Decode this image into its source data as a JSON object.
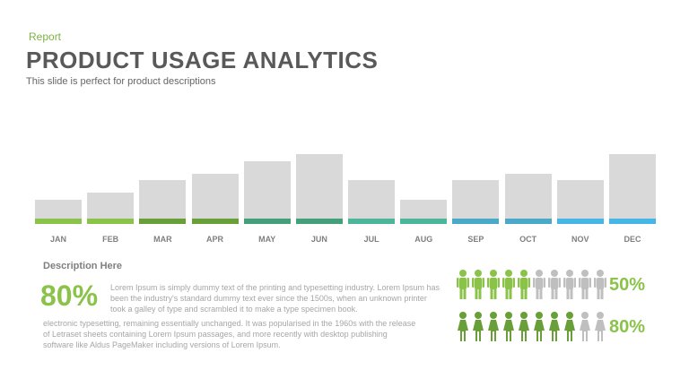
{
  "header": {
    "tag": "Report",
    "title": "PRODUCT USAGE ANALYTICS",
    "subtitle": "This slide is perfect for product descriptions"
  },
  "chart_data": {
    "type": "bar",
    "categories": [
      "JAN",
      "FEB",
      "MAR",
      "APR",
      "MAY",
      "JUN",
      "JUL",
      "AUG",
      "SEP",
      "OCT",
      "NOV",
      "DEC"
    ],
    "values": [
      20,
      27,
      40,
      47,
      60,
      67,
      40,
      20,
      40,
      47,
      40,
      67
    ],
    "colors": [
      "#8bc34a",
      "#8bc34a",
      "#689f38",
      "#689f38",
      "#43a07a",
      "#43a07a",
      "#4db69a",
      "#4db69a",
      "#4aa9c9",
      "#4aa9c9",
      "#45b6e6",
      "#45b6e6"
    ],
    "grid": false,
    "title": "",
    "xlabel": "",
    "ylabel": ""
  },
  "description": {
    "heading": "Description  Here",
    "big_percent": "80%",
    "para1": "Lorem Ipsum is simply dummy text of the printing and typesetting industry. Lorem Ipsum has been the industry's standard dummy text ever since the 1500s, when an unknown printer took a galley of type and scrambled it to make a type specimen book.",
    "para2": "electronic typesetting, remaining essentially unchanged. It was popularised in the 1960s with the release of Letraset sheets containing Lorem Ipsum passages, and more recently with desktop publishing software like Aldus PageMaker including versions of Lorem Ipsum."
  },
  "people_stats": [
    {
      "label": "50%",
      "filled": 5,
      "total": 10,
      "color": "#8bc34a",
      "icon": "male-person-icon"
    },
    {
      "label": "80%",
      "filled": 8,
      "total": 10,
      "color": "#689f38",
      "icon": "female-person-icon"
    }
  ],
  "colors": {
    "empty_person": "#bfbfbf",
    "bar_grey": "#d9d9d9"
  }
}
